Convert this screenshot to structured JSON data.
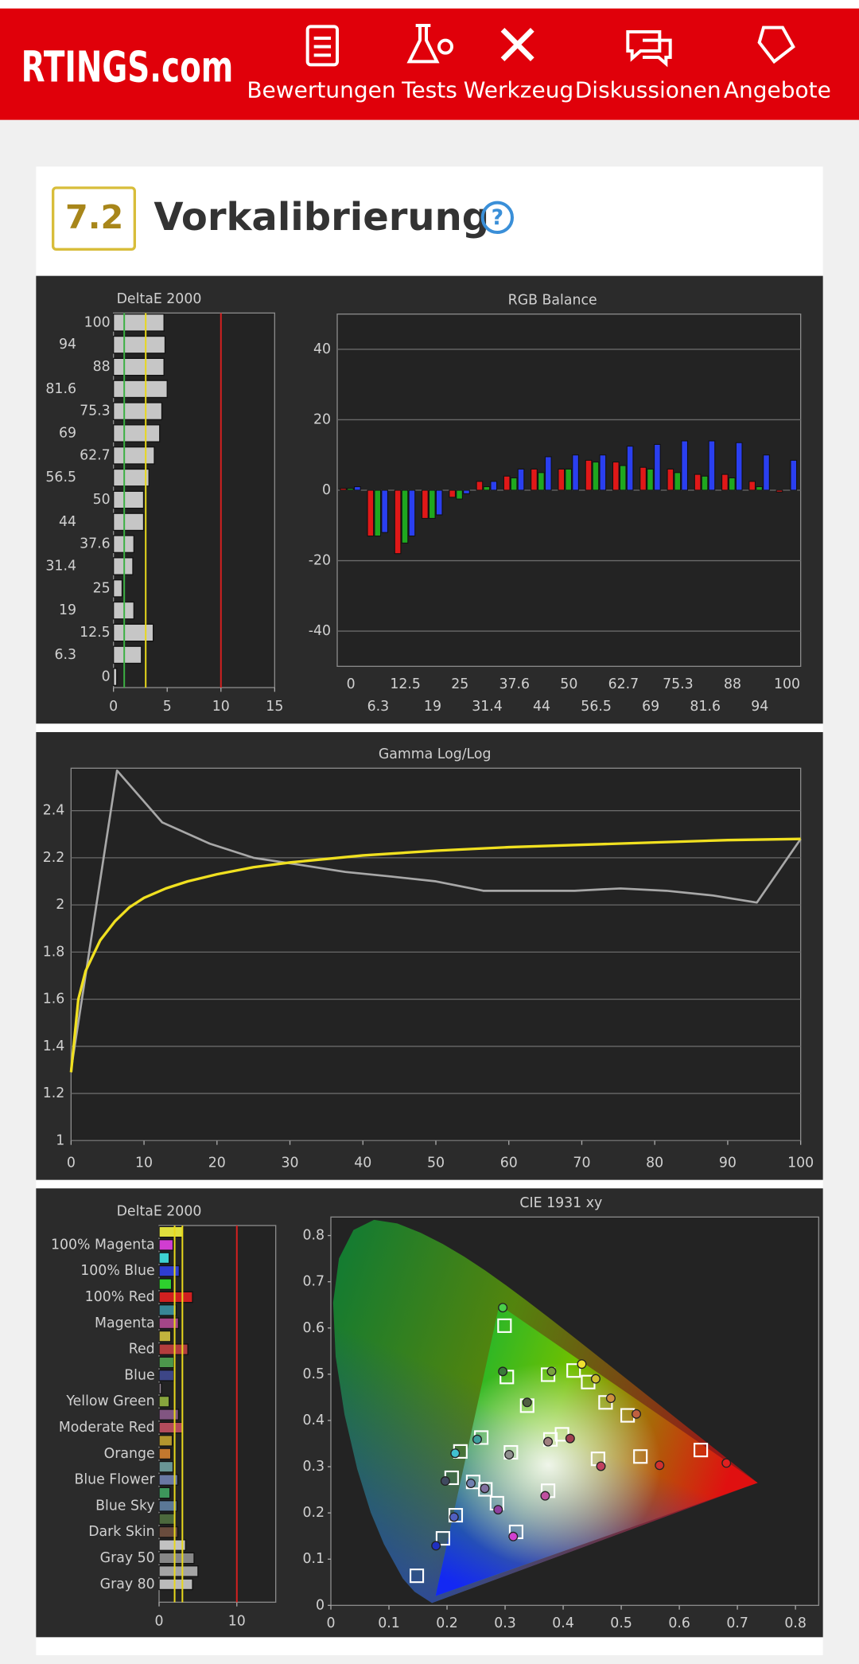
{
  "header": {
    "logo": "RTINGS.com",
    "nav": [
      "Bewertungen",
      "Tests",
      "Werkzeug",
      "Diskussionen",
      "Angebote"
    ]
  },
  "section": {
    "score": "7.2",
    "title": "Vorkalibrierung",
    "help": "?"
  },
  "chart_data": [
    {
      "type": "hbar",
      "title": "DeltaE 2000",
      "categories": [
        "100",
        "94",
        "88",
        "81.6",
        "75.3",
        "69",
        "62.7",
        "56.5",
        "50",
        "44",
        "37.6",
        "31.4",
        "25",
        "19",
        "12.5",
        "6.3",
        "0"
      ],
      "values": [
        4.7,
        4.8,
        4.7,
        5.0,
        4.5,
        4.3,
        3.8,
        3.3,
        2.8,
        2.8,
        1.9,
        1.8,
        0.8,
        1.9,
        3.7,
        2.6,
        0.3
      ],
      "color": "#d4d4d4",
      "xlim": [
        0,
        15
      ],
      "xticks": [
        0,
        5,
        10,
        15
      ],
      "reference_lines": [
        {
          "value": 1,
          "color": "#3cb043"
        },
        {
          "value": 3,
          "color": "#e8d81c"
        },
        {
          "value": 10,
          "color": "#d42020"
        }
      ]
    },
    {
      "type": "bar",
      "title": "RGB Balance",
      "categories": [
        "0",
        "6.3",
        "12.5",
        "19",
        "25",
        "31.4",
        "37.6",
        "44",
        "50",
        "56.5",
        "62.7",
        "69",
        "75.3",
        "81.6",
        "88",
        "94",
        "100"
      ],
      "series": [
        {
          "color": "#e01818",
          "values": [
            0.5,
            -13,
            -18,
            -8,
            -2,
            2.5,
            4,
            6,
            6,
            8.5,
            8,
            6.5,
            6,
            4.5,
            4.5,
            2.5,
            -0.5
          ]
        },
        {
          "color": "#1fa81f",
          "values": [
            0.5,
            -13,
            -15,
            -8,
            -2.5,
            1,
            3.5,
            5,
            6,
            8,
            7,
            6,
            5,
            4,
            3.5,
            1,
            0
          ]
        },
        {
          "color": "#2a3ff0",
          "values": [
            1,
            -12,
            -13,
            -7,
            -1,
            2.5,
            6,
            9.5,
            10,
            10,
            12.5,
            13,
            14,
            14,
            13.5,
            10,
            8.5
          ]
        }
      ],
      "ylim": [
        -50,
        50
      ],
      "yticks": [
        -40,
        -20,
        0,
        20,
        40
      ],
      "grid": true
    },
    {
      "type": "line",
      "title": "Gamma Log/Log",
      "series": [
        {
          "color": "#a8a8a8",
          "x": [
            0,
            6.3,
            12.5,
            19,
            25,
            31.4,
            37.6,
            44,
            50,
            56.5,
            62.7,
            69,
            75.3,
            81.6,
            88,
            94,
            100
          ],
          "values": [
            1.3,
            2.57,
            2.35,
            2.26,
            2.2,
            2.17,
            2.14,
            2.12,
            2.1,
            2.06,
            2.06,
            2.06,
            2.07,
            2.06,
            2.04,
            2.01,
            2.28
          ]
        },
        {
          "color": "#f0e020",
          "x": [
            0,
            1,
            2,
            4,
            6,
            8,
            10,
            13,
            16,
            20,
            25,
            30,
            40,
            50,
            60,
            70,
            80,
            90,
            100
          ],
          "values": [
            1.29,
            1.6,
            1.72,
            1.85,
            1.93,
            1.99,
            2.03,
            2.07,
            2.1,
            2.13,
            2.16,
            2.18,
            2.21,
            2.23,
            2.245,
            2.255,
            2.265,
            2.275,
            2.28
          ]
        }
      ],
      "xlim": [
        0,
        100
      ],
      "xticks": [
        0,
        10,
        20,
        30,
        40,
        50,
        60,
        70,
        80,
        90,
        100
      ],
      "ylim": [
        1,
        2.58
      ],
      "yticks": [
        1,
        1.2,
        1.4,
        1.6,
        1.8,
        2,
        2.2,
        2.4
      ],
      "grid": true
    },
    {
      "type": "hbar",
      "title": "DeltaE 2000",
      "categories": [
        null,
        "100% Magenta",
        null,
        "100% Blue",
        null,
        "100% Red",
        null,
        "Magenta",
        null,
        "Red",
        null,
        "Blue",
        null,
        "Yellow Green",
        null,
        "Moderate Red",
        null,
        "Orange",
        null,
        "Blue Flower",
        null,
        "Blue Sky",
        null,
        "Dark Skin",
        null,
        "Gray 50",
        null,
        "Gray 80"
      ],
      "values": [
        3.0,
        1.8,
        1.3,
        2.6,
        1.6,
        4.3,
        2.2,
        2.5,
        1.5,
        3.7,
        1.9,
        1.9,
        0.3,
        1.3,
        2.5,
        3.0,
        1.7,
        1.5,
        1.8,
        2.4,
        1.4,
        2.3,
        2.0,
        2.4,
        3.4,
        4.5,
        5.0,
        4.3
      ],
      "colors": [
        "#f0f040",
        "#e040e0",
        "#40e0e0",
        "#3040e0",
        "#30e030",
        "#e02020",
        "#3a8fa0",
        "#b04a90",
        "#d0c040",
        "#c04040",
        "#50a050",
        "#404a90",
        "#a090a0",
        "#90b040",
        "#8a5a8a",
        "#c05060",
        "#c0a030",
        "#d08030",
        "#70a0a0",
        "#7080b0",
        "#40a060",
        "#6080a0",
        "#507040",
        "#705040",
        "#d0d0d0",
        "#909090",
        "#b0b0b0",
        "#c8c8c8"
      ],
      "xlim": [
        0,
        15
      ],
      "xticks": [
        0,
        10
      ],
      "reference_lines": [
        {
          "value": 2,
          "color": "#e8d81c"
        },
        {
          "value": 3,
          "color": "#e8d81c"
        },
        {
          "value": 10,
          "color": "#d42020"
        }
      ]
    },
    {
      "type": "scatter",
      "title": "CIE 1931 xy",
      "series": [
        {
          "marker": "square",
          "color": "#ffffff",
          "x": [
            0.299,
            0.303,
            0.374,
            0.338,
            0.418,
            0.443,
            0.473,
            0.511,
            0.398,
            0.378,
            0.31,
            0.259,
            0.223,
            0.208,
            0.245,
            0.266,
            0.286,
            0.374,
            0.46,
            0.533,
            0.637,
            0.148,
            0.193,
            0.215,
            0.319
          ],
          "values": [
            0.605,
            0.494,
            0.499,
            0.432,
            0.508,
            0.483,
            0.439,
            0.411,
            0.37,
            0.359,
            0.331,
            0.363,
            0.333,
            0.276,
            0.267,
            0.251,
            0.221,
            0.248,
            0.317,
            0.322,
            0.336,
            0.064,
            0.145,
            0.195,
            0.159
          ]
        },
        {
          "marker": "circle",
          "colors": [
            "#4ad04a",
            "#3a7a3a",
            "#7aa040",
            "#506040",
            "#f0e030",
            "#d0c030",
            "#d09040",
            "#c06040",
            "#a04050",
            "#a08080",
            "#909090",
            "#40a0a0",
            "#40c0d0",
            "#404a60",
            "#7080b0",
            "#8070a0",
            "#9040a0",
            "#c050a0",
            "#c04060",
            "#d03030",
            "#e02020",
            "#2030c0",
            "#5060c0",
            "#d040d0"
          ],
          "x": [
            0.296,
            0.296,
            0.38,
            0.338,
            0.432,
            0.456,
            0.482,
            0.526,
            0.412,
            0.374,
            0.307,
            0.252,
            0.214,
            0.197,
            0.241,
            0.265,
            0.288,
            0.369,
            0.465,
            0.566,
            0.681,
            0.181,
            0.212,
            0.314
          ],
          "values": [
            0.644,
            0.506,
            0.506,
            0.439,
            0.522,
            0.49,
            0.448,
            0.414,
            0.361,
            0.354,
            0.326,
            0.359,
            0.329,
            0.269,
            0.264,
            0.253,
            0.207,
            0.237,
            0.301,
            0.303,
            0.308,
            0.129,
            0.191,
            0.149
          ]
        }
      ],
      "xlim": [
        0,
        0.84
      ],
      "xticks": [
        0,
        0.1,
        0.2,
        0.3,
        0.4,
        0.5,
        0.6,
        0.7,
        0.8
      ],
      "ylim": [
        0,
        0.84
      ],
      "yticks": [
        0,
        0.1,
        0.2,
        0.3,
        0.4,
        0.5,
        0.6,
        0.7,
        0.8
      ],
      "grid": false
    }
  ]
}
